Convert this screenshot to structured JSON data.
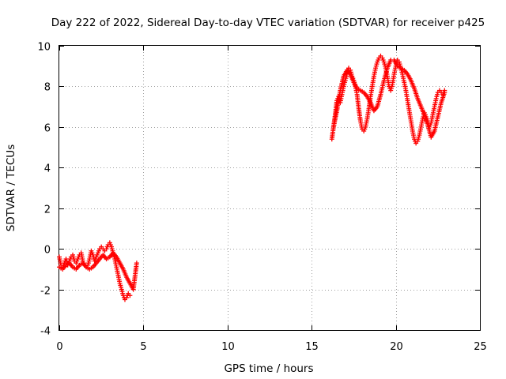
{
  "chart_data": {
    "type": "scatter",
    "title": "Day 222 of 2022, Sidereal Day-to-day VTEC variation (SDTVAR) for receiver p425",
    "xlabel": "GPS time / hours",
    "ylabel": "SDTVAR / TECUs",
    "xlim": [
      0,
      25
    ],
    "ylim": [
      -4,
      10
    ],
    "xticks": [
      "0",
      "5",
      "10",
      "15",
      "20",
      "25"
    ],
    "yticks": [
      "-4",
      "-2",
      "0",
      "2",
      "4",
      "6",
      "8",
      "10"
    ],
    "grid": true,
    "marker": "plus",
    "color": "#ff0000",
    "series": [
      {
        "x": [
          0.0,
          0.1,
          0.2,
          0.3,
          0.4,
          0.5,
          0.6,
          0.7,
          0.8,
          0.9,
          1.0,
          1.1,
          1.2,
          1.3,
          1.4,
          1.5,
          1.6,
          1.7,
          1.8,
          1.9,
          2.0,
          2.1,
          2.2,
          2.3,
          2.4,
          2.5,
          2.6,
          2.7,
          2.8,
          2.9,
          3.0,
          3.1,
          3.2,
          3.3,
          3.4,
          3.5,
          3.6,
          3.7,
          3.8,
          3.9,
          4.0,
          4.1,
          4.2
        ],
        "y": [
          -0.4,
          -0.8,
          -0.9,
          -0.7,
          -0.5,
          -0.8,
          -0.6,
          -0.4,
          -0.3,
          -0.6,
          -0.7,
          -0.5,
          -0.3,
          -0.2,
          -0.6,
          -0.8,
          -0.9,
          -0.8,
          -0.5,
          -0.1,
          -0.3,
          -0.6,
          -0.4,
          -0.2,
          0.0,
          0.1,
          0.0,
          -0.1,
          0.0,
          0.2,
          0.3,
          0.1,
          -0.2,
          -0.5,
          -0.9,
          -1.3,
          -1.7,
          -2.0,
          -2.3,
          -2.5,
          -2.4,
          -2.2,
          -2.3
        ]
      },
      {
        "x": [
          0.0,
          0.2,
          0.4,
          0.6,
          0.8,
          1.0,
          1.2,
          1.4,
          1.6,
          1.8,
          2.0,
          2.2,
          2.4,
          2.6,
          2.8,
          3.0,
          3.2,
          3.4,
          3.6,
          3.8,
          4.0,
          4.2,
          4.4,
          4.6
        ],
        "y": [
          -0.9,
          -1.0,
          -0.8,
          -0.7,
          -0.9,
          -1.0,
          -0.8,
          -0.7,
          -0.9,
          -1.0,
          -0.9,
          -0.7,
          -0.5,
          -0.3,
          -0.5,
          -0.4,
          -0.2,
          -0.4,
          -0.7,
          -1.0,
          -1.4,
          -1.7,
          -2.0,
          -0.7
        ]
      },
      {
        "x": [
          16.2,
          16.3,
          16.4,
          16.5,
          16.6,
          16.7,
          16.8,
          16.9,
          17.0,
          17.1,
          17.2,
          17.3,
          17.4,
          17.5,
          17.6,
          17.7,
          17.8,
          17.9,
          18.0,
          18.1,
          18.2,
          18.3,
          18.4,
          18.5,
          18.6,
          18.7,
          18.8,
          18.9,
          19.0,
          19.1,
          19.2,
          19.3,
          19.4,
          19.5,
          19.6,
          19.7,
          19.8,
          19.9,
          20.0,
          20.1,
          20.2,
          20.3,
          20.4,
          20.5,
          20.6,
          20.7,
          20.8,
          20.9,
          21.0,
          21.1,
          21.2,
          21.3,
          21.4,
          21.5,
          21.6,
          21.7,
          21.8,
          21.9,
          22.0,
          22.1,
          22.2,
          22.3,
          22.4,
          22.5,
          22.6,
          22.7,
          22.8,
          22.9
        ],
        "y": [
          5.4,
          6.0,
          6.6,
          7.3,
          7.5,
          7.2,
          7.6,
          8.0,
          8.3,
          8.6,
          8.9,
          8.8,
          8.5,
          8.3,
          8.0,
          7.6,
          6.9,
          6.3,
          5.9,
          5.8,
          6.0,
          6.4,
          6.9,
          7.5,
          8.0,
          8.5,
          8.9,
          9.2,
          9.4,
          9.5,
          9.4,
          9.2,
          8.9,
          8.5,
          8.0,
          7.8,
          8.1,
          8.6,
          9.0,
          9.3,
          9.2,
          8.9,
          8.6,
          8.2,
          7.8,
          7.3,
          6.8,
          6.3,
          5.8,
          5.4,
          5.2,
          5.3,
          5.6,
          6.0,
          6.4,
          6.7,
          6.5,
          6.2,
          6.0,
          6.2,
          6.6,
          7.0,
          7.4,
          7.7,
          7.8,
          7.7,
          7.6,
          7.8
        ]
      },
      {
        "x": [
          16.3,
          16.5,
          16.7,
          16.9,
          17.1,
          17.3,
          17.5,
          17.7,
          17.9,
          18.1,
          18.3,
          18.5,
          18.7,
          18.9,
          19.1,
          19.3,
          19.5,
          19.7,
          19.9,
          20.1,
          20.3,
          20.5,
          20.7,
          20.9,
          21.1,
          21.3,
          21.5,
          21.7,
          21.9,
          22.1,
          22.3,
          22.5,
          22.7,
          22.9
        ],
        "y": [
          6.0,
          6.8,
          7.8,
          8.5,
          8.8,
          8.6,
          8.2,
          7.9,
          7.8,
          7.7,
          7.5,
          7.2,
          6.8,
          7.0,
          7.6,
          8.3,
          8.9,
          9.3,
          9.3,
          9.0,
          8.9,
          8.8,
          8.6,
          8.3,
          7.9,
          7.4,
          7.0,
          6.6,
          6.1,
          5.5,
          5.8,
          6.5,
          7.2,
          7.7
        ]
      }
    ]
  }
}
